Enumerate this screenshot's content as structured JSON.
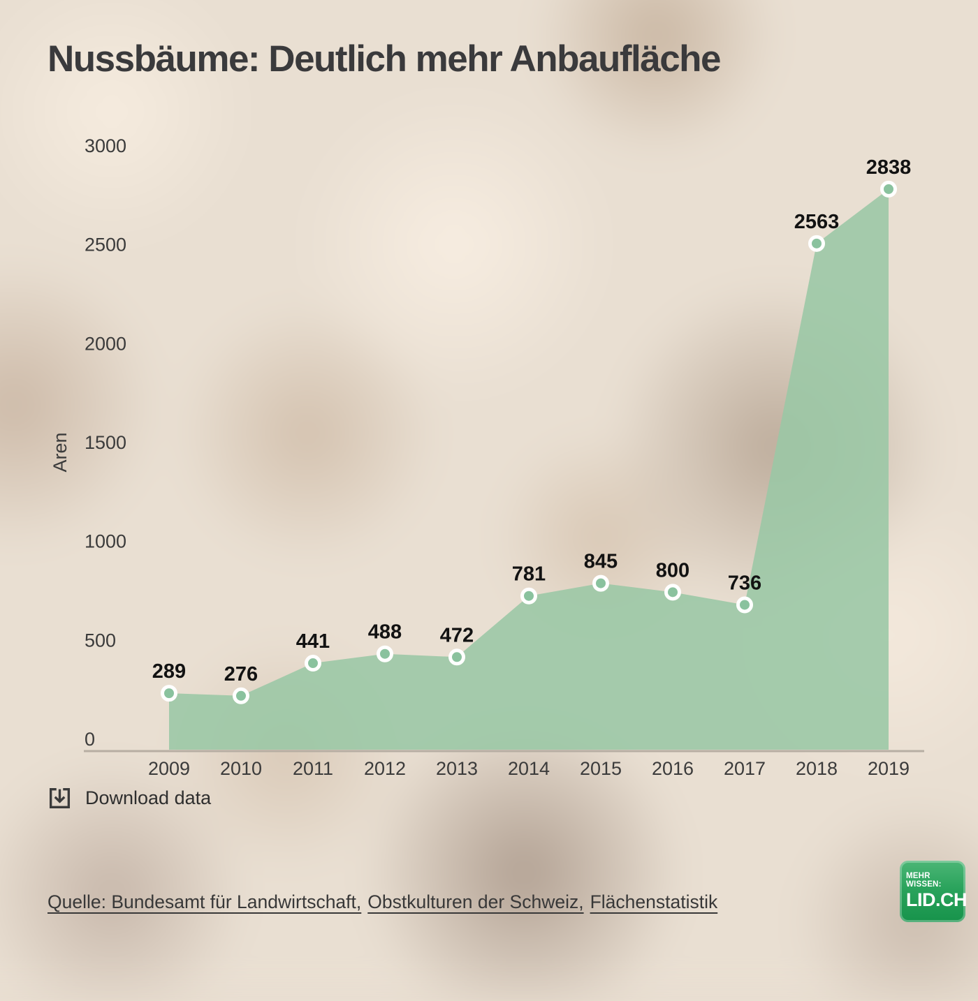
{
  "title": "Nussbäume: Deutlich mehr Anbaufläche",
  "chart_data": {
    "type": "area",
    "x": [
      "2009",
      "2010",
      "2011",
      "2012",
      "2013",
      "2014",
      "2015",
      "2016",
      "2017",
      "2018",
      "2019"
    ],
    "values": [
      289,
      276,
      441,
      488,
      472,
      781,
      845,
      800,
      736,
      2563,
      2838
    ],
    "title": "Nussbäume: Deutlich mehr Anbaufläche",
    "xlabel": "",
    "ylabel": "Aren",
    "ylim": [
      0,
      3000
    ],
    "yticks": [
      0,
      500,
      1000,
      1500,
      2000,
      2500,
      3000
    ],
    "grid": false,
    "legend": null,
    "point_labels_shown": true
  },
  "footer": {
    "download_label": "Download data",
    "source_links": [
      "Quelle: Bundesamt für Landwirtschaft,",
      "Obstkulturen der Schweiz,",
      "Flächenstatistik"
    ]
  },
  "logo": {
    "tagline": "MEHR WISSEN:",
    "name": "LID.CH"
  },
  "colors": {
    "area_fill": "#9ac7a5",
    "point_fill": "#8ac29e",
    "point_ring": "#ffffff",
    "axis_line": "#b7aea3",
    "text_dark": "#3b3b3b",
    "value_label": "#121212",
    "title_text": "#3a3a3c",
    "logo_green": "#2aa35c"
  }
}
